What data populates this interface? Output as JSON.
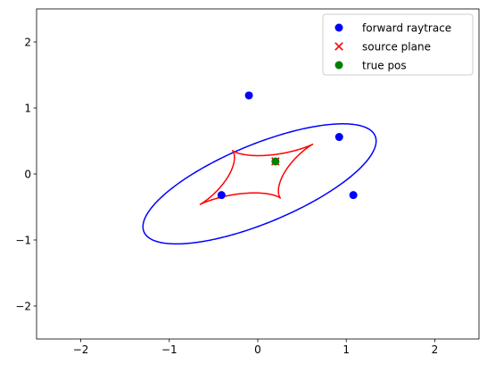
{
  "chart_data": {
    "type": "scatter",
    "title": "",
    "xlabel": "",
    "ylabel": "",
    "xlim": [
      -2.5,
      2.5
    ],
    "ylim": [
      -2.5,
      2.5
    ],
    "xticks": [
      -2,
      -1,
      0,
      1,
      2
    ],
    "yticks": [
      -2,
      -1,
      0,
      1,
      2
    ],
    "xtick_labels": [
      "−2",
      "−1",
      "0",
      "1",
      "2"
    ],
    "ytick_labels": [
      "−2",
      "−1",
      "0",
      "1",
      "2"
    ],
    "grid": false,
    "legend_position": "top-right",
    "scatter_series": [
      {
        "name": "forward raytrace",
        "marker": "circle",
        "color": "#0000ff",
        "points": [
          [
            -0.1,
            1.19
          ],
          [
            0.92,
            0.56
          ],
          [
            -0.41,
            -0.32
          ],
          [
            1.08,
            -0.32
          ]
        ]
      },
      {
        "name": "source plane",
        "marker": "x",
        "color": "#ff0000",
        "points": [
          [
            0.2,
            0.19
          ]
        ]
      },
      {
        "name": "true pos",
        "marker": "circle",
        "color": "#008000",
        "points": [
          [
            0.2,
            0.19
          ]
        ]
      }
    ],
    "curves": [
      {
        "kind": "ellipse",
        "color": "#0000ff",
        "center": [
          0.02,
          -0.15
        ],
        "semi_major": 1.5,
        "semi_minor": 0.56,
        "angle_deg": 31
      },
      {
        "kind": "astroid",
        "color": "#ff0000",
        "cusps": [
          [
            0.62,
            0.45
          ],
          [
            -0.27,
            0.36
          ],
          [
            -0.65,
            -0.46
          ],
          [
            0.27,
            -0.36
          ]
        ]
      }
    ]
  }
}
